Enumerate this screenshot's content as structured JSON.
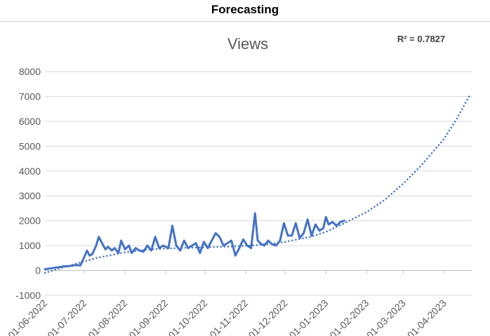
{
  "header": {
    "title": "Forecasting"
  },
  "chart_data": {
    "type": "line",
    "title": "Views",
    "annotation": "R² = 0.7827",
    "xlabel": "",
    "ylabel": "",
    "ylim": [
      -1000,
      8000
    ],
    "yticks": [
      -1000,
      0,
      1000,
      2000,
      3000,
      4000,
      5000,
      6000,
      7000,
      8000
    ],
    "xlim": [
      "2022-06-01",
      "2023-04-22"
    ],
    "xticks": [
      "01-06-2022",
      "01-07-2022",
      "01-08-2022",
      "01-09-2022",
      "01-10-2022",
      "01-11-2022",
      "01-12-2022",
      "01-01-2023",
      "01-02-2023",
      "01-03-2023",
      "01-04-2023"
    ],
    "grid": true,
    "colors": {
      "series": "#4472c4",
      "grid": "#d9d9d9",
      "text": "#595959"
    },
    "series": [
      {
        "style": "solid",
        "x": [
          "2022-06-01",
          "2022-06-05",
          "2022-06-10",
          "2022-06-15",
          "2022-06-20",
          "2022-06-25",
          "2022-06-28",
          "2022-07-01",
          "2022-07-03",
          "2022-07-05",
          "2022-07-07",
          "2022-07-10",
          "2022-07-12",
          "2022-07-14",
          "2022-07-17",
          "2022-07-19",
          "2022-07-22",
          "2022-07-24",
          "2022-07-27",
          "2022-07-29",
          "2022-08-01",
          "2022-08-04",
          "2022-08-06",
          "2022-08-09",
          "2022-08-12",
          "2022-08-15",
          "2022-08-18",
          "2022-08-21",
          "2022-08-24",
          "2022-08-27",
          "2022-08-30",
          "2022-09-01",
          "2022-09-03",
          "2022-09-06",
          "2022-09-09",
          "2022-09-12",
          "2022-09-15",
          "2022-09-18",
          "2022-09-21",
          "2022-09-24",
          "2022-09-27",
          "2022-09-30",
          "2022-10-03",
          "2022-10-06",
          "2022-10-09",
          "2022-10-12",
          "2022-10-15",
          "2022-10-18",
          "2022-10-21",
          "2022-10-24",
          "2022-10-27",
          "2022-10-30",
          "2022-11-02",
          "2022-11-05",
          "2022-11-08",
          "2022-11-10",
          "2022-11-12",
          "2022-11-15",
          "2022-11-18",
          "2022-11-21",
          "2022-11-24",
          "2022-11-27",
          "2022-11-30",
          "2022-12-03",
          "2022-12-06",
          "2022-12-09",
          "2022-12-12",
          "2022-12-15",
          "2022-12-18",
          "2022-12-21",
          "2022-12-24",
          "2022-12-27",
          "2022-12-30",
          "2023-01-01",
          "2023-01-03",
          "2023-01-06",
          "2023-01-09",
          "2023-01-12",
          "2023-01-15"
        ],
        "values": [
          50,
          80,
          120,
          160,
          180,
          220,
          200,
          550,
          800,
          600,
          650,
          1000,
          1350,
          1150,
          850,
          950,
          800,
          900,
          700,
          1200,
          850,
          1000,
          700,
          900,
          800,
          750,
          1000,
          800,
          1350,
          900,
          1000,
          950,
          900,
          1800,
          1000,
          800,
          1200,
          900,
          1000,
          1100,
          700,
          1150,
          900,
          1200,
          1500,
          1350,
          1000,
          1100,
          1200,
          600,
          900,
          1250,
          1000,
          900,
          2300,
          1200,
          1100,
          1000,
          1200,
          1050,
          1000,
          1200,
          1900,
          1400,
          1400,
          1900,
          1300,
          1500,
          2050,
          1400,
          1850,
          1600,
          1700,
          2150,
          1850,
          1950,
          1800,
          1950,
          2000
        ]
      },
      {
        "style": "dotted",
        "x": [
          "2022-06-01",
          "2022-06-20",
          "2022-07-10",
          "2022-08-01",
          "2022-08-20",
          "2022-09-10",
          "2022-10-01",
          "2022-10-20",
          "2022-11-10",
          "2022-12-01",
          "2022-12-20",
          "2023-01-01",
          "2023-01-15",
          "2023-02-01",
          "2023-02-15",
          "2023-03-01",
          "2023-03-15",
          "2023-04-01",
          "2023-04-10",
          "2023-04-20"
        ],
        "values": [
          -100,
          200,
          500,
          730,
          850,
          900,
          930,
          960,
          1020,
          1150,
          1350,
          1550,
          1900,
          2350,
          2850,
          3500,
          4250,
          5300,
          6050,
          7000
        ]
      }
    ]
  }
}
